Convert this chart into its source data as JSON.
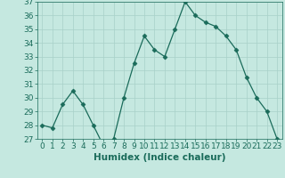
{
  "x": [
    0,
    1,
    2,
    3,
    4,
    5,
    6,
    7,
    8,
    9,
    10,
    11,
    12,
    13,
    14,
    15,
    16,
    17,
    18,
    19,
    20,
    21,
    22,
    23
  ],
  "y": [
    28,
    27.8,
    29.5,
    30.5,
    29.5,
    28,
    26.5,
    27,
    30,
    32.5,
    34.5,
    33.5,
    33,
    35,
    37,
    36,
    35.5,
    35.2,
    34.5,
    33.5,
    31.5,
    30,
    29,
    27
  ],
  "line_color": "#1a6b5a",
  "marker": "D",
  "marker_size": 2.5,
  "bg_color": "#c5e8e0",
  "grid_color": "#a8d0c8",
  "xlabel": "Humidex (Indice chaleur)",
  "xlim": [
    -0.5,
    23.5
  ],
  "ylim": [
    27,
    37
  ],
  "yticks": [
    27,
    28,
    29,
    30,
    31,
    32,
    33,
    34,
    35,
    36,
    37
  ],
  "xticks": [
    0,
    1,
    2,
    3,
    4,
    5,
    6,
    7,
    8,
    9,
    10,
    11,
    12,
    13,
    14,
    15,
    16,
    17,
    18,
    19,
    20,
    21,
    22,
    23
  ],
  "tick_color": "#1a6b5a",
  "label_color": "#1a6b5a",
  "tick_fontsize": 6.5,
  "xlabel_fontsize": 7.5
}
